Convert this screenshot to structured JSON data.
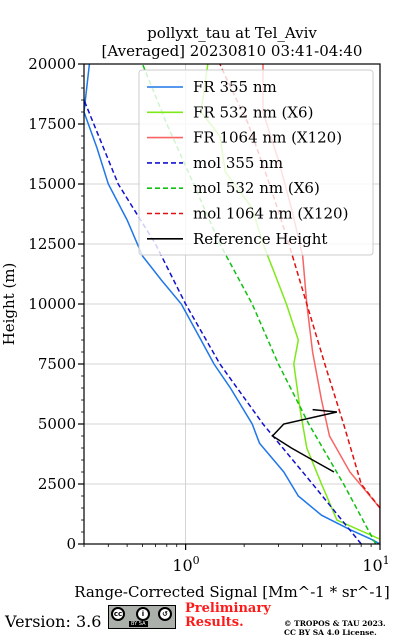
{
  "chart_data": {
    "type": "line",
    "title": "pollyxt_tau at Tel_Aviv",
    "subtitle": "[Averaged] 20230810 03:41-04:40",
    "xlabel": "Range-Corrected Signal [Mm^-1 * sr^-1]",
    "ylabel": "Height (m)",
    "xscale": "log",
    "xlim": [
      0.3,
      10
    ],
    "ylim": [
      0,
      20000
    ],
    "xticks": [
      "10^0",
      "10^1"
    ],
    "yticks": [
      0,
      2500,
      5000,
      7500,
      10000,
      12500,
      15000,
      17500,
      20000
    ],
    "ytick_labels": [
      "0",
      "2500",
      "5000",
      "7500",
      "10000",
      "12500",
      "15000",
      "17500",
      "20000"
    ],
    "grid": true,
    "legend_position": "top-right",
    "series": [
      {
        "name": "FR 355 nm",
        "style": "solid",
        "color": "#1f77e8",
        "points": [
          [
            10,
            0
          ],
          [
            9,
            200
          ],
          [
            7,
            600
          ],
          [
            5,
            1200
          ],
          [
            3.8,
            2000
          ],
          [
            3.2,
            3000
          ],
          [
            2.4,
            4200
          ],
          [
            2.2,
            5000
          ],
          [
            1.7,
            6500
          ],
          [
            1.4,
            7500
          ],
          [
            1.2,
            8500
          ],
          [
            0.95,
            10000
          ],
          [
            0.75,
            11000
          ],
          [
            0.6,
            12000
          ],
          [
            0.5,
            13500
          ],
          [
            0.4,
            15000
          ],
          [
            0.35,
            16500
          ],
          [
            0.3,
            18000
          ],
          [
            0.32,
            20000
          ]
        ]
      },
      {
        "name": "FR 532 nm (X6)",
        "style": "solid",
        "color": "#7fe81a",
        "points": [
          [
            10,
            200
          ],
          [
            6,
            1000
          ],
          [
            5,
            2500
          ],
          [
            4.2,
            4000
          ],
          [
            3.9,
            5500
          ],
          [
            3.6,
            7500
          ],
          [
            3.8,
            8500
          ],
          [
            3.3,
            10000
          ],
          [
            2.8,
            11500
          ],
          [
            2.5,
            12500
          ],
          [
            2.2,
            14000
          ],
          [
            1.6,
            15500
          ],
          [
            1.5,
            17000
          ],
          [
            1.2,
            18000
          ],
          [
            1.3,
            20000
          ]
        ]
      },
      {
        "name": "FR 1064 nm (X120)",
        "style": "solid",
        "color": "#f86464",
        "points": [
          [
            10,
            0
          ],
          [
            10,
            1500
          ],
          [
            7,
            3000
          ],
          [
            5.5,
            4500
          ],
          [
            5,
            6000
          ],
          [
            4.5,
            8000
          ],
          [
            4.2,
            10000
          ],
          [
            4,
            12000
          ],
          [
            3.5,
            14000
          ],
          [
            3,
            16000
          ],
          [
            2.5,
            18000
          ],
          [
            2.5,
            20000
          ]
        ]
      },
      {
        "name": "mol 355 nm",
        "style": "dashed",
        "color": "#1010d0",
        "points": [
          [
            8,
            0
          ],
          [
            4.5,
            2500
          ],
          [
            2.5,
            5000
          ],
          [
            1.5,
            7500
          ],
          [
            1.0,
            10000
          ],
          [
            0.7,
            12500
          ],
          [
            0.45,
            15000
          ],
          [
            0.3,
            18500
          ]
        ]
      },
      {
        "name": "mol 532 nm (X6)",
        "style": "dashed",
        "color": "#10c010",
        "points": [
          [
            9.5,
            0
          ],
          [
            6.5,
            2500
          ],
          [
            4.3,
            5000
          ],
          [
            3.0,
            7500
          ],
          [
            2.2,
            10000
          ],
          [
            1.5,
            12500
          ],
          [
            1.1,
            15000
          ],
          [
            0.8,
            17500
          ],
          [
            0.6,
            20000
          ]
        ]
      },
      {
        "name": "mol 1064 nm (X120)",
        "style": "dashed",
        "color": "#e01010",
        "points": [
          [
            10,
            1500
          ],
          [
            8,
            2500
          ],
          [
            6.5,
            5000
          ],
          [
            5.2,
            7500
          ],
          [
            4.2,
            10000
          ],
          [
            3.4,
            12500
          ],
          [
            2.7,
            15000
          ],
          [
            2.1,
            17500
          ],
          [
            1.6,
            19500
          ],
          [
            1.5,
            20000
          ]
        ]
      },
      {
        "name": "Reference Height",
        "style": "solid",
        "color": "#000000",
        "points": [
          [
            5.8,
            3000
          ],
          [
            4.5,
            3500
          ],
          [
            3.5,
            4000
          ],
          [
            2.8,
            4500
          ],
          [
            3.2,
            5000
          ],
          [
            6,
            5500
          ],
          [
            4.5,
            5600
          ]
        ]
      }
    ]
  },
  "footer": {
    "version": "Version: 3.6",
    "license_badge": "BY SA",
    "preliminary": [
      "Preliminary",
      "Results."
    ],
    "copyright": [
      "© TROPOS & TAU 2023.",
      "CC BY SA 4.0 License."
    ]
  },
  "axis_tick_text": {
    "x0_base": "10",
    "x0_exp": "0",
    "x1_base": "10",
    "x1_exp": "1"
  }
}
